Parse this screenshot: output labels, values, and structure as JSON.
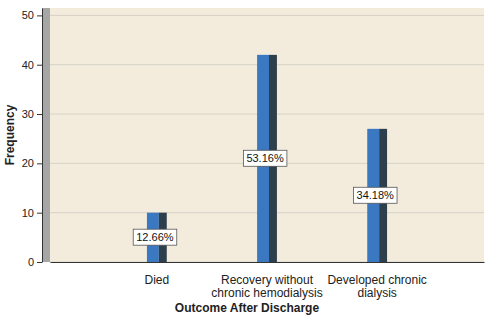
{
  "chart_data": {
    "type": "bar",
    "x_label": "Outcome After Discharge",
    "y_label": "Frequency",
    "categories": [
      "Died",
      "Recovery without chronic hemodialysis",
      "Developed chronic dialysis"
    ],
    "values": [
      10,
      42,
      27
    ],
    "percentage_labels": [
      "12.66%",
      "53.16%",
      "34.18%"
    ],
    "color": "#3b78c2",
    "ylim": [
      0,
      51.5
    ],
    "yticks": [
      0,
      10,
      20,
      30,
      40,
      50
    ],
    "grid": true
  }
}
